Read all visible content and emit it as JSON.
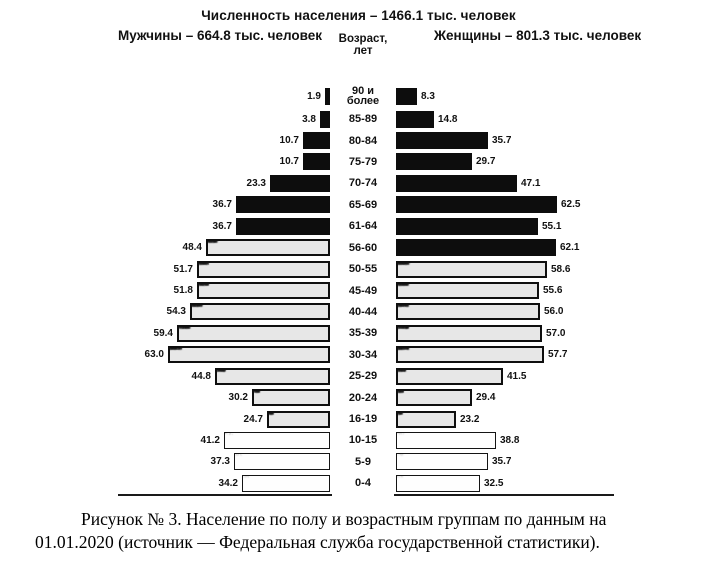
{
  "header": {
    "title": "Численность населения – 1466.1 тыс. человек",
    "men_total": "Мужчины – 664.8 тыс. человек",
    "women_total": "Женщины – 801.3 тыс. человек",
    "axis_title_line1": "Возраст,",
    "axis_title_line2": "лет"
  },
  "chart_data": {
    "type": "bar",
    "subtype": "population-pyramid",
    "unit": "тыс. человек",
    "categories": [
      "90 и более",
      "85-89",
      "80-84",
      "75-79",
      "70-74",
      "65-69",
      "61-64",
      "56-60",
      "50-55",
      "45-49",
      "40-44",
      "35-39",
      "30-34",
      "25-29",
      "20-24",
      "16-19",
      "10-15",
      "5-9",
      "0-4"
    ],
    "series": [
      {
        "name": "Мужчины",
        "side": "left",
        "values": [
          1.9,
          3.8,
          10.7,
          10.7,
          23.3,
          36.7,
          36.7,
          48.4,
          51.7,
          51.8,
          54.3,
          59.4,
          63.0,
          44.8,
          30.2,
          24.7,
          41.2,
          37.3,
          34.2
        ],
        "fills": [
          "black",
          "black",
          "black",
          "black",
          "black",
          "black",
          "black",
          "speckled",
          "speckled",
          "speckled",
          "speckled",
          "speckled",
          "speckled",
          "speckled",
          "speckled",
          "speckled",
          "light",
          "light",
          "light"
        ]
      },
      {
        "name": "Женщины",
        "side": "right",
        "values": [
          8.3,
          14.8,
          35.7,
          29.7,
          47.1,
          62.5,
          55.1,
          62.1,
          58.6,
          55.6,
          56.0,
          57.0,
          57.7,
          41.5,
          29.4,
          23.2,
          38.8,
          35.7,
          32.5
        ],
        "fills": [
          "black",
          "black",
          "black",
          "black",
          "black",
          "black",
          "black",
          "black",
          "speckled",
          "speckled",
          "speckled",
          "speckled",
          "speckled",
          "speckled",
          "speckled",
          "speckled",
          "light",
          "light",
          "light"
        ]
      }
    ],
    "xlim_per_side": [
      0,
      65
    ],
    "value_labels": "outside",
    "grid": false,
    "legend": "none",
    "colors": {
      "solid_bar": "#0d0d0d",
      "bar_border": "#0f0f0f",
      "speckle_base": "#e7e7e7",
      "light_base": "#fefefe",
      "axis_line": "#1a1a1a"
    }
  },
  "caption": {
    "line1": "Рисунок № 3. Население по полу и возрастным группам по данным на",
    "line2": "01.01.2020 (источник — Федеральная служба государственной статистики)."
  }
}
